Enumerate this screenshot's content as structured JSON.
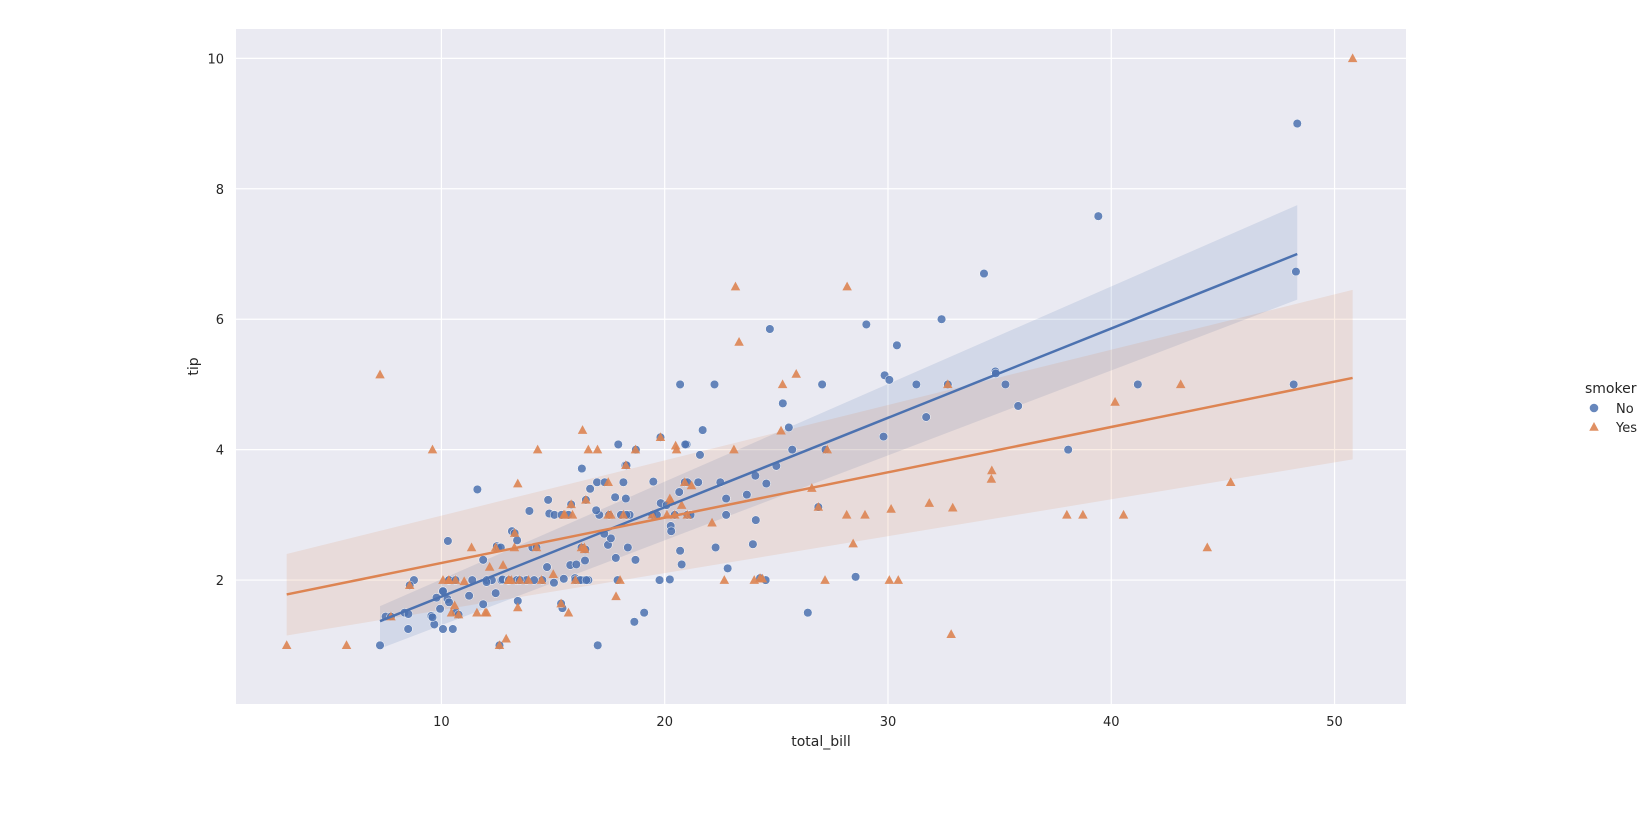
{
  "chart_data": {
    "type": "scatter",
    "xlabel": "total_bill",
    "ylabel": "tip",
    "xlim": [
      0.8,
      53.2
    ],
    "ylim": [
      0.1,
      10.45
    ],
    "xticks": [
      10,
      20,
      30,
      40,
      50
    ],
    "yticks": [
      2,
      4,
      6,
      8,
      10
    ],
    "grid": true,
    "legend": {
      "title": "smoker",
      "placement": "right"
    },
    "series": [
      {
        "name": "No",
        "marker": "circle",
        "color": "#4c72b0",
        "points": [
          [
            7.25,
            1.0
          ],
          [
            7.5,
            1.44
          ],
          [
            7.74,
            1.44
          ],
          [
            8.35,
            1.5
          ],
          [
            8.51,
            1.25
          ],
          [
            8.52,
            1.48
          ],
          [
            8.77,
            2.0
          ],
          [
            9.55,
            1.45
          ],
          [
            9.68,
            1.32
          ],
          [
            9.78,
            1.73
          ],
          [
            9.94,
            1.56
          ],
          [
            10.07,
            1.83
          ],
          [
            10.07,
            1.25
          ],
          [
            10.27,
            1.71
          ],
          [
            10.29,
            2.6
          ],
          [
            10.33,
            2.0
          ],
          [
            10.34,
            1.66
          ],
          [
            10.34,
            2.0
          ],
          [
            10.63,
            2.0
          ],
          [
            10.65,
            1.5
          ],
          [
            10.77,
            1.47
          ],
          [
            11.24,
            1.76
          ],
          [
            11.38,
            2.0
          ],
          [
            11.61,
            3.39
          ],
          [
            11.87,
            1.63
          ],
          [
            12.03,
            2.0
          ],
          [
            12.26,
            2.0
          ],
          [
            12.46,
            2.5
          ],
          [
            12.48,
            2.52
          ],
          [
            12.54,
            2.5
          ],
          [
            12.6,
            1.0
          ],
          [
            12.66,
            2.5
          ],
          [
            12.69,
            2.0
          ],
          [
            12.74,
            2.01
          ],
          [
            13.0,
            2.0
          ],
          [
            13.03,
            2.0
          ],
          [
            13.16,
            2.75
          ],
          [
            13.28,
            2.72
          ],
          [
            13.37,
            2.0
          ],
          [
            13.42,
            1.68
          ],
          [
            13.81,
            2.0
          ],
          [
            13.94,
            3.06
          ],
          [
            14.07,
            2.5
          ],
          [
            14.26,
            2.5
          ],
          [
            14.52,
            2.0
          ],
          [
            14.73,
            2.2
          ],
          [
            14.78,
            3.23
          ],
          [
            14.83,
            3.02
          ],
          [
            15.04,
            1.96
          ],
          [
            15.06,
            3.0
          ],
          [
            15.38,
            3.0
          ],
          [
            15.42,
            1.57
          ],
          [
            15.77,
            2.23
          ],
          [
            15.98,
            2.03
          ],
          [
            16.0,
            2.0
          ],
          [
            16.04,
            2.24
          ],
          [
            16.27,
            2.5
          ],
          [
            16.29,
            3.71
          ],
          [
            16.31,
            2.0
          ],
          [
            16.43,
            2.3
          ],
          [
            16.45,
            2.47
          ],
          [
            16.66,
            3.4
          ],
          [
            16.97,
            3.5
          ],
          [
            17.07,
            3.0
          ],
          [
            17.46,
            2.54
          ],
          [
            17.51,
            3.0
          ],
          [
            17.59,
            2.64
          ],
          [
            17.78,
            3.27
          ],
          [
            17.81,
            2.34
          ],
          [
            17.89,
            2.0
          ],
          [
            17.92,
            4.08
          ],
          [
            18.04,
            3.0
          ],
          [
            18.15,
            3.5
          ],
          [
            18.24,
            3.76
          ],
          [
            18.26,
            3.25
          ],
          [
            18.29,
            3.76
          ],
          [
            18.35,
            2.5
          ],
          [
            18.43,
            3.0
          ],
          [
            18.69,
            2.31
          ],
          [
            18.71,
            4.0
          ],
          [
            19.08,
            1.5
          ],
          [
            19.44,
            3.0
          ],
          [
            19.49,
            3.51
          ],
          [
            19.65,
            3.0
          ],
          [
            19.77,
            2.0
          ],
          [
            19.82,
            3.18
          ],
          [
            20.08,
            3.15
          ],
          [
            20.23,
            2.01
          ],
          [
            20.27,
            2.83
          ],
          [
            20.29,
            2.75
          ],
          [
            20.45,
            3.0
          ],
          [
            20.65,
            3.35
          ],
          [
            20.69,
            2.45
          ],
          [
            20.76,
            2.24
          ],
          [
            21.01,
            3.0
          ],
          [
            21.16,
            3.0
          ],
          [
            21.5,
            3.5
          ],
          [
            21.58,
            3.92
          ],
          [
            21.7,
            4.3
          ],
          [
            22.23,
            5.0
          ],
          [
            22.49,
            3.5
          ],
          [
            22.75,
            3.25
          ],
          [
            22.82,
            2.18
          ],
          [
            23.68,
            3.31
          ],
          [
            23.95,
            2.55
          ],
          [
            24.06,
            3.6
          ],
          [
            24.08,
            2.92
          ],
          [
            24.52,
            2.0
          ],
          [
            24.55,
            3.48
          ],
          [
            24.71,
            5.85
          ],
          [
            25.0,
            3.75
          ],
          [
            25.29,
            4.71
          ],
          [
            25.56,
            4.34
          ],
          [
            25.71,
            4.0
          ],
          [
            26.41,
            1.5
          ],
          [
            26.88,
            3.12
          ],
          [
            27.05,
            5.0
          ],
          [
            27.2,
            4.0
          ],
          [
            28.55,
            2.05
          ],
          [
            29.03,
            5.92
          ],
          [
            29.8,
            4.2
          ],
          [
            29.85,
            5.14
          ],
          [
            30.06,
            5.07
          ],
          [
            30.4,
            5.6
          ],
          [
            31.27,
            5.0
          ],
          [
            31.71,
            4.5
          ],
          [
            32.4,
            6.0
          ],
          [
            34.3,
            6.7
          ],
          [
            34.81,
            5.2
          ],
          [
            34.83,
            5.17
          ],
          [
            35.26,
            5.0
          ],
          [
            35.83,
            4.67
          ],
          [
            38.07,
            4.0
          ],
          [
            39.42,
            7.58
          ],
          [
            41.19,
            5.0
          ],
          [
            48.17,
            5.0
          ],
          [
            48.27,
            6.73
          ],
          [
            48.33,
            9.0
          ],
          [
            20.69,
            5.0
          ],
          [
            16.93,
            3.07
          ],
          [
            17.31,
            3.5
          ],
          [
            14.15,
            2.0
          ],
          [
            12.02,
            1.97
          ],
          [
            15.69,
            3.0
          ],
          [
            20.9,
            3.5
          ],
          [
            18.29,
            3.0
          ],
          [
            13.39,
            2.61
          ],
          [
            16.58,
            2.0
          ],
          [
            20.98,
            4.08
          ],
          [
            16.21,
            2.0
          ],
          [
            17.29,
            2.71
          ],
          [
            15.36,
            1.64
          ],
          [
            15.81,
            3.16
          ],
          [
            10.07,
            1.83
          ],
          [
            9.6,
            1.43
          ],
          [
            18.64,
            1.36
          ],
          [
            16.49,
            2.0
          ],
          [
            24.27,
            2.03
          ],
          [
            22.28,
            2.5
          ],
          [
            20.92,
            4.08
          ],
          [
            17.0,
            1.0
          ],
          [
            11.87,
            2.31
          ],
          [
            10.51,
            1.25
          ],
          [
            13.51,
            2.0
          ],
          [
            12.43,
            1.8
          ],
          [
            8.58,
            1.92
          ],
          [
            16.47,
            3.23
          ],
          [
            32.68,
            5.0
          ],
          [
            22.75,
            3.0
          ],
          [
            21.01,
            3.5
          ],
          [
            15.48,
            2.02
          ],
          [
            19.81,
            4.19
          ]
        ],
        "fit": {
          "x_start": 7.25,
          "x_end": 48.33,
          "y_start": 1.37,
          "y_end": 7.0,
          "ci_start": [
            0.95,
            1.6
          ],
          "ci_end": [
            6.3,
            7.75
          ]
        }
      },
      {
        "name": "Yes",
        "marker": "triangle",
        "color": "#dd8452",
        "points": [
          [
            3.07,
            1.0
          ],
          [
            5.75,
            1.0
          ],
          [
            7.25,
            5.15
          ],
          [
            7.74,
            1.44
          ],
          [
            8.58,
            1.92
          ],
          [
            9.6,
            4.0
          ],
          [
            10.07,
            2.0
          ],
          [
            10.34,
            2.0
          ],
          [
            10.59,
            1.61
          ],
          [
            10.63,
            2.0
          ],
          [
            10.77,
            1.47
          ],
          [
            11.02,
            1.98
          ],
          [
            11.35,
            2.5
          ],
          [
            11.59,
            1.5
          ],
          [
            12.03,
            1.5
          ],
          [
            12.16,
            2.2
          ],
          [
            12.6,
            1.0
          ],
          [
            12.76,
            2.23
          ],
          [
            12.9,
            1.1
          ],
          [
            13.0,
            2.0
          ],
          [
            13.13,
            2.0
          ],
          [
            13.27,
            2.5
          ],
          [
            13.28,
            2.72
          ],
          [
            13.42,
            3.48
          ],
          [
            13.42,
            1.58
          ],
          [
            13.51,
            2.0
          ],
          [
            14.31,
            4.0
          ],
          [
            14.48,
            2.0
          ],
          [
            15.01,
            2.09
          ],
          [
            15.36,
            1.64
          ],
          [
            15.48,
            3.0
          ],
          [
            15.69,
            1.5
          ],
          [
            15.81,
            3.16
          ],
          [
            16.27,
            2.5
          ],
          [
            16.32,
            4.3
          ],
          [
            16.4,
            2.5
          ],
          [
            16.58,
            4.0
          ],
          [
            16.99,
            4.0
          ],
          [
            17.47,
            3.5
          ],
          [
            17.47,
            3.0
          ],
          [
            17.82,
            1.75
          ],
          [
            18.0,
            2.0
          ],
          [
            18.26,
            3.76
          ],
          [
            18.69,
            4.0
          ],
          [
            19.44,
            3.0
          ],
          [
            19.81,
            4.19
          ],
          [
            20.23,
            3.25
          ],
          [
            20.29,
            3.21
          ],
          [
            20.45,
            3.0
          ],
          [
            20.49,
            4.06
          ],
          [
            20.53,
            4.0
          ],
          [
            20.9,
            3.5
          ],
          [
            21.01,
            3.0
          ],
          [
            22.12,
            2.88
          ],
          [
            22.67,
            2.0
          ],
          [
            23.1,
            4.0
          ],
          [
            23.17,
            6.5
          ],
          [
            23.33,
            5.65
          ],
          [
            24.01,
            2.0
          ],
          [
            24.27,
            2.03
          ],
          [
            25.21,
            4.29
          ],
          [
            25.28,
            5.0
          ],
          [
            25.89,
            5.16
          ],
          [
            26.59,
            3.41
          ],
          [
            27.18,
            2.0
          ],
          [
            27.28,
            4.0
          ],
          [
            28.15,
            3.0
          ],
          [
            28.17,
            6.5
          ],
          [
            28.44,
            2.56
          ],
          [
            28.97,
            3.0
          ],
          [
            30.14,
            3.09
          ],
          [
            30.46,
            2.0
          ],
          [
            31.85,
            3.18
          ],
          [
            32.68,
            5.0
          ],
          [
            32.83,
            1.17
          ],
          [
            32.9,
            3.11
          ],
          [
            34.63,
            3.55
          ],
          [
            34.65,
            3.68
          ],
          [
            38.01,
            3.0
          ],
          [
            38.73,
            3.0
          ],
          [
            40.17,
            4.73
          ],
          [
            40.55,
            3.0
          ],
          [
            43.11,
            5.0
          ],
          [
            44.3,
            2.5
          ],
          [
            45.35,
            3.5
          ],
          [
            50.81,
            10.0
          ],
          [
            16.47,
            3.23
          ],
          [
            21.2,
            3.45
          ],
          [
            24.38,
            2.02
          ],
          [
            16.0,
            2.0
          ],
          [
            18.15,
            3.0
          ],
          [
            13.03,
            2.0
          ],
          [
            11.96,
            1.5
          ],
          [
            13.9,
            2.0
          ],
          [
            14.26,
            2.5
          ],
          [
            15.87,
            3.0
          ],
          [
            17.59,
            3.0
          ],
          [
            20.76,
            3.15
          ],
          [
            15.53,
            3.0
          ],
          [
            30.06,
            2.0
          ],
          [
            26.88,
            3.12
          ],
          [
            16.41,
            2.47
          ],
          [
            10.33,
            2.0
          ],
          [
            10.45,
            1.5
          ],
          [
            12.43,
            2.5
          ],
          [
            20.1,
            3.0
          ]
        ],
        "fit": {
          "x_start": 3.07,
          "x_end": 50.81,
          "y_start": 1.78,
          "y_end": 5.1,
          "ci_start": [
            1.15,
            2.4
          ],
          "ci_end": [
            3.85,
            6.45
          ]
        }
      }
    ]
  }
}
